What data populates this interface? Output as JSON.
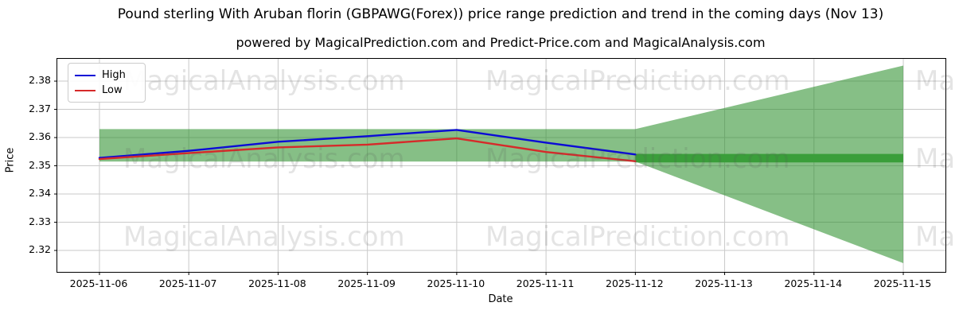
{
  "header": {
    "title": "Pound sterling With Aruban florin (GBPAWG(Forex)) price range prediction and trend in the coming days (Nov 13)",
    "subtitle": "powered by MagicalPrediction.com and Predict-Price.com and MagicalAnalysis.com"
  },
  "watermarks": {
    "analysis": "MagicalAnalysis.com",
    "prediction": "MagicalPrediction.com",
    "rows": [
      82,
      180,
      278
    ],
    "cols": [
      155,
      610,
      1150
    ]
  },
  "chart_data": {
    "type": "line",
    "title": "Pound sterling With Aruban florin (GBPAWG(Forex)) price range prediction and trend in the coming days (Nov 13)",
    "subtitle": "powered by MagicalPrediction.com and Predict-Price.com and MagicalAnalysis.com",
    "xlabel": "Date",
    "ylabel": "Price",
    "grid": true,
    "grid_color": "#c9c9c9",
    "xlim": [
      -0.472,
      9.472
    ],
    "ylim": [
      2.3124,
      2.3879
    ],
    "xticks": [
      {
        "v": 0,
        "label": "2025-11-06"
      },
      {
        "v": 1,
        "label": "2025-11-07"
      },
      {
        "v": 2,
        "label": "2025-11-08"
      },
      {
        "v": 3,
        "label": "2025-11-09"
      },
      {
        "v": 4,
        "label": "2025-11-10"
      },
      {
        "v": 5,
        "label": "2025-11-11"
      },
      {
        "v": 6,
        "label": "2025-11-12"
      },
      {
        "v": 7,
        "label": "2025-11-13"
      },
      {
        "v": 8,
        "label": "2025-11-14"
      },
      {
        "v": 9,
        "label": "2025-11-15"
      }
    ],
    "yticks": [
      {
        "v": 2.32,
        "label": "2.32"
      },
      {
        "v": 2.33,
        "label": "2.33"
      },
      {
        "v": 2.34,
        "label": "2.34"
      },
      {
        "v": 2.35,
        "label": "2.35"
      },
      {
        "v": 2.36,
        "label": "2.36"
      },
      {
        "v": 2.37,
        "label": "2.37"
      },
      {
        "v": 2.38,
        "label": "2.38"
      }
    ],
    "series": [
      {
        "name": "High",
        "color": "#0b0bd6",
        "x": [
          0,
          1,
          2,
          3,
          4,
          5,
          6
        ],
        "values": [
          2.3528,
          2.3553,
          2.3585,
          2.3605,
          2.3627,
          2.3582,
          2.354
        ]
      },
      {
        "name": "Low",
        "color": "#d62a2a",
        "x": [
          0,
          1,
          2,
          3,
          4,
          5,
          6
        ],
        "values": [
          2.3524,
          2.3545,
          2.3565,
          2.3575,
          2.3597,
          2.3549,
          2.3516
        ]
      }
    ],
    "range_band": {
      "x_start": 0,
      "x_end": 6,
      "y_low": 2.3515,
      "y_high": 2.363,
      "color": "rgba(34,139,34,0.55)"
    },
    "forecast_fan": {
      "x_start": 6,
      "x_end": 9,
      "start_low": 2.3515,
      "start_high": 2.363,
      "end_low": 2.3155,
      "end_high": 2.3855,
      "color": "rgba(34,139,34,0.55)"
    },
    "trend_bar": {
      "x_start": 6,
      "x_end": 9,
      "y_low": 2.3512,
      "y_high": 2.3542,
      "color": "#3a9e3a"
    },
    "legend": {
      "position": "upper-left",
      "items": [
        {
          "label": "High",
          "color": "#0b0bd6"
        },
        {
          "label": "Low",
          "color": "#d62a2a"
        }
      ]
    }
  }
}
